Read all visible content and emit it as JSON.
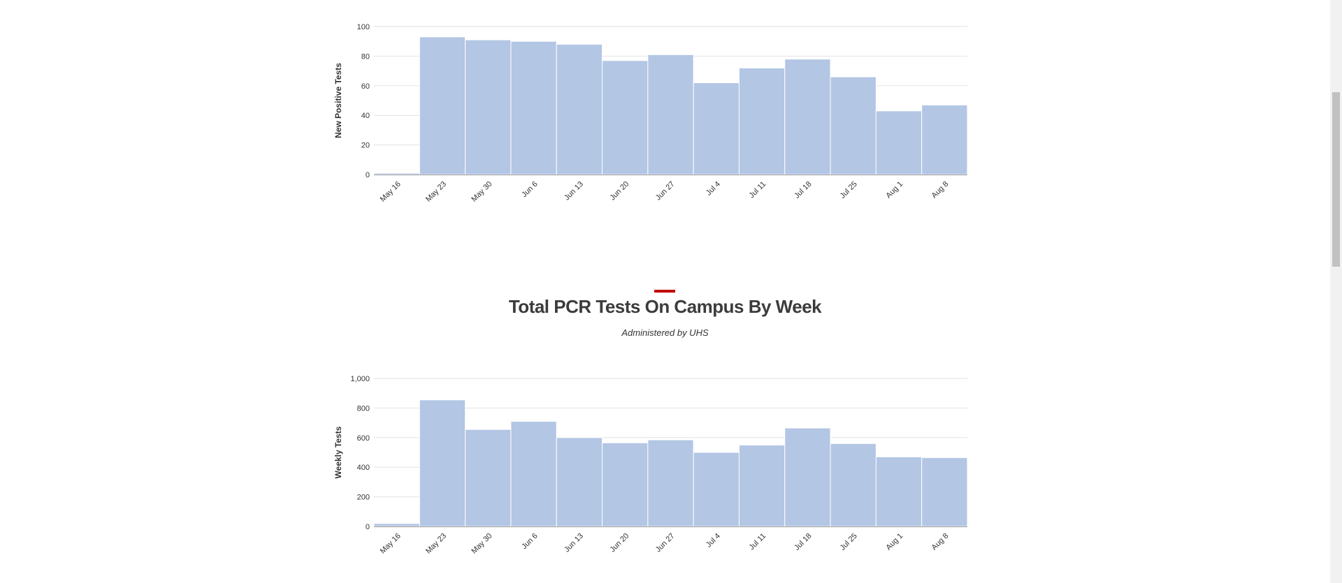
{
  "chart_data": [
    {
      "type": "bar",
      "title": "",
      "xlabel": "",
      "ylabel": "New Positive Tests",
      "categories": [
        "May 16",
        "May 23",
        "May 30",
        "Jun 6",
        "Jun 13",
        "Jun 20",
        "Jun 27",
        "Jul 4",
        "Jul 11",
        "Jul 18",
        "Jul 25",
        "Aug 1",
        "Aug 8"
      ],
      "values": [
        1,
        93,
        91,
        90,
        88,
        77,
        81,
        62,
        72,
        78,
        66,
        43,
        47
      ],
      "ylim": [
        0,
        100
      ],
      "yticks": [
        0,
        20,
        40,
        60,
        80,
        100
      ],
      "ytick_labels": [
        "0",
        "20",
        "40",
        "60",
        "80",
        "100"
      ],
      "color": "#b3c6e4",
      "grid": true
    },
    {
      "type": "bar",
      "title": "Total PCR Tests On Campus By Week",
      "subtitle": "Administered by UHS",
      "xlabel": "",
      "ylabel": "Weekly Tests",
      "categories": [
        "May 16",
        "May 23",
        "May 30",
        "Jun 6",
        "Jun 13",
        "Jun 20",
        "Jun 27",
        "Jul 4",
        "Jul 11",
        "Jul 18",
        "Jul 25",
        "Aug 1",
        "Aug 8"
      ],
      "values": [
        20,
        855,
        655,
        710,
        600,
        565,
        585,
        500,
        550,
        665,
        560,
        470,
        465
      ],
      "ylim": [
        0,
        1000
      ],
      "yticks": [
        0,
        200,
        400,
        600,
        800,
        1000
      ],
      "ytick_labels": [
        "0",
        "200",
        "400",
        "600",
        "800",
        "1,000"
      ],
      "color": "#b3c6e4",
      "grid": true
    }
  ],
  "colors": {
    "accent": "#c00000",
    "bar": "#b3c6e4",
    "grid": "#e2e2e2",
    "text": "#333333"
  }
}
